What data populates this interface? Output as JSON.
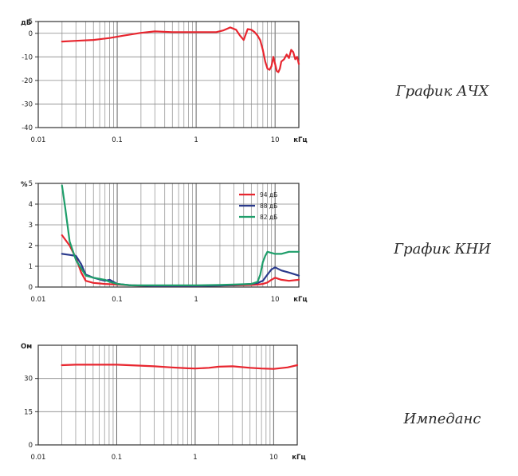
{
  "captions": [
    "График АЧХ",
    "График КНИ",
    "Импеданс"
  ],
  "chart_data": [
    {
      "type": "line",
      "title": "",
      "xlabel": "кГц",
      "ylabel": "дБ",
      "xscale": "log",
      "xlim": [
        0.01,
        20
      ],
      "ylim": [
        -40,
        5
      ],
      "x_tick_labels": [
        "0.01",
        "0.1",
        "1",
        "10"
      ],
      "y_ticks": [
        5,
        0,
        -10,
        -20,
        -30,
        -40
      ],
      "grid": true,
      "series": [
        {
          "color": "#e8262f",
          "x": [
            0.02,
            0.03,
            0.05,
            0.08,
            0.12,
            0.2,
            0.3,
            0.5,
            0.8,
            1.2,
            1.8,
            2.2,
            2.7,
            3.2,
            3.6,
            4.0,
            4.5,
            5.0,
            5.5,
            6.0,
            6.5,
            7.0,
            7.5,
            8.0,
            8.5,
            9.0,
            9.5,
            10,
            10.5,
            11,
            11.5,
            12,
            13,
            14,
            15,
            16,
            17,
            18,
            19,
            20
          ],
          "y": [
            -3.5,
            -3.2,
            -2.8,
            -2.0,
            -1.0,
            0.2,
            0.8,
            0.5,
            0.5,
            0.5,
            0.5,
            1.2,
            2.5,
            1.5,
            -1.0,
            -2.8,
            1.8,
            1.5,
            0.5,
            -1.0,
            -3.0,
            -7.0,
            -12.0,
            -15.0,
            -15.5,
            -14.0,
            -10.0,
            -13.0,
            -16.0,
            -16.5,
            -15.0,
            -12.0,
            -11.0,
            -9.0,
            -10.5,
            -7.0,
            -8.0,
            -11.0,
            -10.0,
            -13.0
          ]
        }
      ]
    },
    {
      "type": "line",
      "title": "",
      "xlabel": "кГц",
      "ylabel": "%",
      "xscale": "log",
      "xlim": [
        0.01,
        20
      ],
      "ylim": [
        0,
        5
      ],
      "x_tick_labels": [
        "0.01",
        "0.1",
        "1",
        "10"
      ],
      "y_ticks": [
        5,
        4,
        3,
        2,
        1,
        0
      ],
      "grid": true,
      "legend": "top-right",
      "series": [
        {
          "name": "94 дБ",
          "color": "#e8262f",
          "x": [
            0.02,
            0.025,
            0.03,
            0.035,
            0.04,
            0.05,
            0.07,
            0.1,
            0.15,
            0.3,
            0.5,
            1,
            2,
            3,
            5,
            6,
            7,
            8,
            9,
            10,
            12,
            15,
            20
          ],
          "y": [
            2.5,
            2.0,
            1.4,
            0.7,
            0.3,
            0.2,
            0.15,
            0.12,
            0.08,
            0.05,
            0.05,
            0.05,
            0.07,
            0.08,
            0.1,
            0.12,
            0.15,
            0.22,
            0.35,
            0.45,
            0.35,
            0.3,
            0.35
          ]
        },
        {
          "name": "88 дБ",
          "color": "#2a3a8c",
          "x": [
            0.02,
            0.025,
            0.03,
            0.035,
            0.04,
            0.05,
            0.07,
            0.08,
            0.1,
            0.15,
            0.3,
            0.5,
            1,
            2,
            3,
            5,
            6,
            7,
            8,
            9,
            10,
            12,
            15,
            20
          ],
          "y": [
            1.6,
            1.55,
            1.5,
            1.1,
            0.6,
            0.45,
            0.3,
            0.35,
            0.15,
            0.08,
            0.05,
            0.05,
            0.05,
            0.07,
            0.1,
            0.15,
            0.2,
            0.3,
            0.6,
            0.85,
            0.95,
            0.8,
            0.7,
            0.55
          ]
        },
        {
          "name": "82 дБ",
          "color": "#1e9e6a",
          "x": [
            0.02,
            0.022,
            0.025,
            0.03,
            0.035,
            0.04,
            0.05,
            0.07,
            0.08,
            0.1,
            0.15,
            0.3,
            0.5,
            1,
            2,
            3,
            5,
            6,
            6.5,
            7,
            7.5,
            8,
            10,
            12,
            15,
            20
          ],
          "y": [
            4.9,
            3.8,
            2.2,
            1.3,
            0.9,
            0.55,
            0.45,
            0.35,
            0.25,
            0.15,
            0.08,
            0.08,
            0.08,
            0.08,
            0.1,
            0.12,
            0.15,
            0.25,
            0.6,
            1.2,
            1.5,
            1.7,
            1.6,
            1.6,
            1.7,
            1.7
          ]
        }
      ]
    },
    {
      "type": "line",
      "title": "",
      "xlabel": "кГц",
      "ylabel": "Ом",
      "xscale": "log",
      "xlim": [
        0.01,
        20
      ],
      "ylim": [
        0,
        45
      ],
      "x_tick_labels": [
        "0.01",
        "0.1",
        "1",
        "10"
      ],
      "y_ticks": [
        30,
        15,
        0
      ],
      "grid": true,
      "series": [
        {
          "color": "#e8262f",
          "x": [
            0.02,
            0.03,
            0.05,
            0.1,
            0.2,
            0.3,
            0.5,
            0.8,
            1,
            1.5,
            2,
            3,
            5,
            7,
            10,
            15,
            20
          ],
          "y": [
            36,
            36.2,
            36.2,
            36.2,
            35.8,
            35.5,
            35,
            34.6,
            34.5,
            34.8,
            35.3,
            35.5,
            34.8,
            34.5,
            34.3,
            35,
            36
          ]
        }
      ]
    }
  ]
}
